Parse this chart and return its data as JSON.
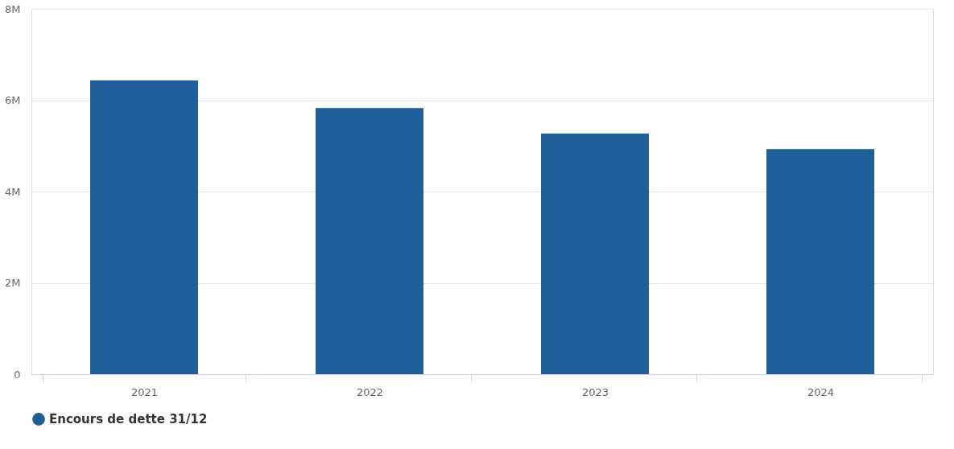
{
  "chart_data": {
    "type": "bar",
    "categories": [
      "2021",
      "2022",
      "2023",
      "2024"
    ],
    "series": [
      {
        "name": "Encours de dette 31/12",
        "color": "#1f5e99",
        "values": [
          6.43,
          5.83,
          5.27,
          4.93
        ]
      }
    ],
    "ylim": [
      0,
      8
    ],
    "yticks": [
      {
        "value": 0,
        "label": "0"
      },
      {
        "value": 2,
        "label": "2M"
      },
      {
        "value": 4,
        "label": "4M"
      },
      {
        "value": 6,
        "label": "6M"
      },
      {
        "value": 8,
        "label": "8M"
      }
    ],
    "grid": "y",
    "legend": "bottom"
  }
}
